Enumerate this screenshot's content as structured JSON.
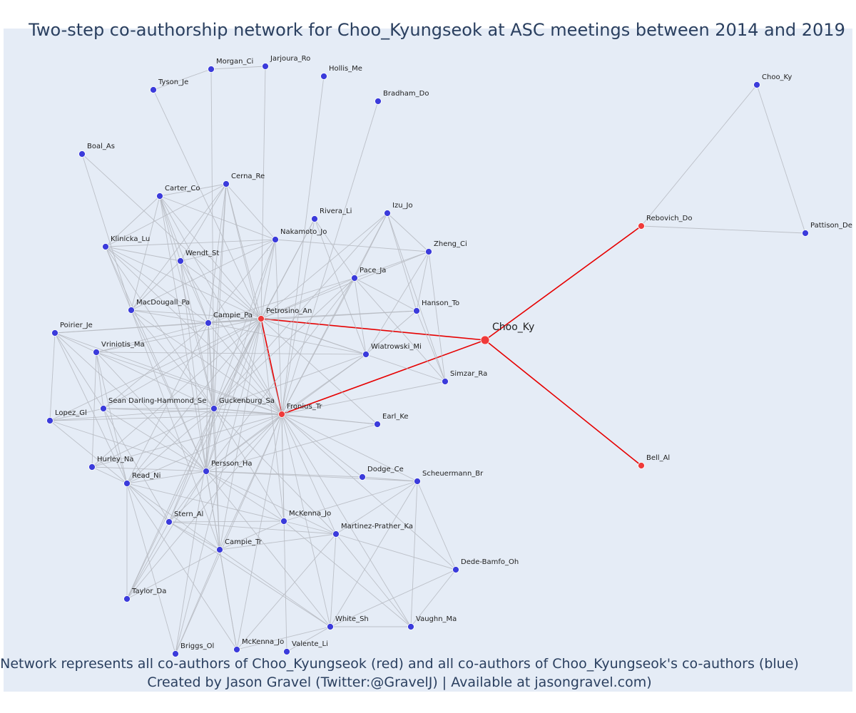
{
  "title": "Two-step co-authorship network for Choo_Kyungseok at ASC meetings between 2014 and 2019",
  "caption": {
    "line1": "Network represents all co-authors of Choo_Kyungseok (red) and all co-authors of Choo_Kyungseok's co-authors (blue)",
    "line2": "Created by Jason Gravel (Twitter:@GravelJ) | Available at jasongravel.com)"
  },
  "colors": {
    "background": "#e5ecf6",
    "text": "#2a3f5f",
    "coauthor": "#ef3a3a",
    "second_step": "#3b3bdb",
    "focal_edge": "#e60000",
    "edge": "#b5b8c0"
  },
  "nodes": [
    {
      "id": "Choo_Ky",
      "label": "Choo_Ky",
      "group": "focal"
    },
    {
      "id": "Petrosino_An",
      "label": "Petrosino_An",
      "group": "coauthor"
    },
    {
      "id": "Fronius_Tr",
      "label": "Fronius_Tr",
      "group": "coauthor"
    },
    {
      "id": "Rebovich_Do",
      "label": "Rebovich_Do",
      "group": "coauthor"
    },
    {
      "id": "Bell_Al",
      "label": "Bell_Al",
      "group": "coauthor"
    },
    {
      "id": "Choo_Ky2",
      "label": "Choo_Ky",
      "group": "second"
    },
    {
      "id": "Pattison_De",
      "label": "Pattison_De",
      "group": "second"
    },
    {
      "id": "Morgan_Ci",
      "label": "Morgan_Ci",
      "group": "second"
    },
    {
      "id": "Jarjoura_Ro",
      "label": "Jarjoura_Ro",
      "group": "second"
    },
    {
      "id": "Hollis_Me",
      "label": "Hollis_Me",
      "group": "second"
    },
    {
      "id": "Tyson_Je",
      "label": "Tyson_Je",
      "group": "second"
    },
    {
      "id": "Bradham_Do",
      "label": "Bradham_Do",
      "group": "second"
    },
    {
      "id": "Boal_As",
      "label": "Boal_As",
      "group": "second"
    },
    {
      "id": "Cerna_Re",
      "label": "Cerna_Re",
      "group": "second"
    },
    {
      "id": "Carter_Co",
      "label": "Carter_Co",
      "group": "second"
    },
    {
      "id": "Rivera_Li",
      "label": "Rivera_Li",
      "group": "second"
    },
    {
      "id": "Izu_Jo",
      "label": "Izu_Jo",
      "group": "second"
    },
    {
      "id": "Klinicka_Lu",
      "label": "Klinicka_Lu",
      "group": "second"
    },
    {
      "id": "Nakamoto_Jo",
      "label": "Nakamoto_Jo",
      "group": "second"
    },
    {
      "id": "Zheng_Ci",
      "label": "Zheng_Ci",
      "group": "second"
    },
    {
      "id": "Wendt_St",
      "label": "Wendt_St",
      "group": "second"
    },
    {
      "id": "Pace_Ja",
      "label": "Pace_Ja",
      "group": "second"
    },
    {
      "id": "MacDougall_Pa",
      "label": "MacDougall_Pa",
      "group": "second"
    },
    {
      "id": "Hanson_To",
      "label": "Hanson_To",
      "group": "second"
    },
    {
      "id": "Campie_Pa",
      "label": "Campie_Pa",
      "group": "second"
    },
    {
      "id": "Poirier_Je",
      "label": "Poirier_Je",
      "group": "second"
    },
    {
      "id": "Vriniotis_Ma",
      "label": "Vriniotis_Ma",
      "group": "second"
    },
    {
      "id": "Wiatrowski_Mi",
      "label": "Wiatrowski_Mi",
      "group": "second"
    },
    {
      "id": "Simzar_Ra",
      "label": "Simzar_Ra",
      "group": "second"
    },
    {
      "id": "Sean_Darling",
      "label": "Sean Darling-Hammond_Se",
      "group": "second"
    },
    {
      "id": "Guckenburg_Sa",
      "label": "Guckenburg_Sa",
      "group": "second"
    },
    {
      "id": "Lopez_Gl",
      "label": "Lopez_Gl",
      "group": "second"
    },
    {
      "id": "Earl_Ke",
      "label": "Earl_Ke",
      "group": "second"
    },
    {
      "id": "Hurley_Na",
      "label": "Hurley_Na",
      "group": "second"
    },
    {
      "id": "Persson_Ha",
      "label": "Persson_Ha",
      "group": "second"
    },
    {
      "id": "Dodge_Ce",
      "label": "Dodge_Ce",
      "group": "second"
    },
    {
      "id": "Read_Ni",
      "label": "Read_Ni",
      "group": "second"
    },
    {
      "id": "Scheuermann_Br",
      "label": "Scheuermann_Br",
      "group": "second"
    },
    {
      "id": "Stern_Al",
      "label": "Stern_Al",
      "group": "second"
    },
    {
      "id": "McKenna_Jo1",
      "label": "McKenna_Jo",
      "group": "second"
    },
    {
      "id": "Martinez_Prather",
      "label": "Martinez-Prather_Ka",
      "group": "second"
    },
    {
      "id": "Campie_Tr",
      "label": "Campie_Tr",
      "group": "second"
    },
    {
      "id": "Dede_Bamfo",
      "label": "Dede-Bamfo_Oh",
      "group": "second"
    },
    {
      "id": "Taylor_Da",
      "label": "Taylor_Da",
      "group": "second"
    },
    {
      "id": "White_Sh",
      "label": "White_Sh",
      "group": "second"
    },
    {
      "id": "Vaughn_Ma",
      "label": "Vaughn_Ma",
      "group": "second"
    },
    {
      "id": "Briggs_Ol",
      "label": "Briggs_Ol",
      "group": "second"
    },
    {
      "id": "McKenna_Jo2",
      "label": "McKenna_Jo",
      "group": "second"
    },
    {
      "id": "Valente_Li",
      "label": "Valente_Li",
      "group": "second"
    }
  ],
  "edges": [
    [
      "Choo_Ky",
      "Petrosino_An"
    ],
    [
      "Choo_Ky",
      "Fronius_Tr"
    ],
    [
      "Choo_Ky",
      "Rebovich_Do"
    ],
    [
      "Choo_Ky",
      "Bell_Al"
    ],
    [
      "Petrosino_An",
      "Fronius_Tr"
    ],
    [
      "Rebovich_Do",
      "Choo_Ky2"
    ],
    [
      "Rebovich_Do",
      "Pattison_De"
    ],
    [
      "Choo_Ky2",
      "Pattison_De"
    ],
    [
      "Petrosino_An",
      "Jarjoura_Ro"
    ],
    [
      "Petrosino_An",
      "Tyson_Je"
    ],
    [
      "Morgan_Ci",
      "Jarjoura_Ro"
    ],
    [
      "Tyson_Je",
      "Morgan_Ci"
    ],
    [
      "Morgan_Ci",
      "Guckenburg_Sa"
    ],
    [
      "Fronius_Tr",
      "Hollis_Me"
    ],
    [
      "Fronius_Tr",
      "Bradham_Do"
    ],
    [
      "Boal_As",
      "Petrosino_An"
    ],
    [
      "Boal_As",
      "MacDougall_Pa"
    ],
    [
      "Petrosino_An",
      "Cerna_Re"
    ],
    [
      "Petrosino_An",
      "Carter_Co"
    ],
    [
      "Petrosino_An",
      "Rivera_Li"
    ],
    [
      "Petrosino_An",
      "Izu_Jo"
    ],
    [
      "Petrosino_An",
      "Klinicka_Lu"
    ],
    [
      "Petrosino_An",
      "Nakamoto_Jo"
    ],
    [
      "Petrosino_An",
      "Zheng_Ci"
    ],
    [
      "Petrosino_An",
      "Wendt_St"
    ],
    [
      "Petrosino_An",
      "Pace_Ja"
    ],
    [
      "Petrosino_An",
      "MacDougall_Pa"
    ],
    [
      "Petrosino_An",
      "Hanson_To"
    ],
    [
      "Petrosino_An",
      "Campie_Pa"
    ],
    [
      "Petrosino_An",
      "Poirier_Je"
    ],
    [
      "Petrosino_An",
      "Vriniotis_Ma"
    ],
    [
      "Petrosino_An",
      "Wiatrowski_Mi"
    ],
    [
      "Petrosino_An",
      "Sean_Darling"
    ],
    [
      "Petrosino_An",
      "Guckenburg_Sa"
    ],
    [
      "Petrosino_An",
      "Lopez_Gl"
    ],
    [
      "Petrosino_An",
      "Earl_Ke"
    ],
    [
      "Petrosino_An",
      "Persson_Ha"
    ],
    [
      "Petrosino_An",
      "Read_Ni"
    ],
    [
      "Petrosino_An",
      "Stern_Al"
    ],
    [
      "Petrosino_An",
      "McKenna_Jo1"
    ],
    [
      "Petrosino_An",
      "Campie_Tr"
    ],
    [
      "Petrosino_An",
      "Briggs_Ol"
    ],
    [
      "Petrosino_An",
      "Taylor_Da"
    ],
    [
      "Petrosino_An",
      "Hurley_Na"
    ],
    [
      "Petrosino_An",
      "Simzar_Ra"
    ],
    [
      "Fronius_Tr",
      "Cerna_Re"
    ],
    [
      "Fronius_Tr",
      "Carter_Co"
    ],
    [
      "Fronius_Tr",
      "Rivera_Li"
    ],
    [
      "Fronius_Tr",
      "Izu_Jo"
    ],
    [
      "Fronius_Tr",
      "Klinicka_Lu"
    ],
    [
      "Fronius_Tr",
      "Nakamoto_Jo"
    ],
    [
      "Fronius_Tr",
      "Wendt_St"
    ],
    [
      "Fronius_Tr",
      "Pace_Ja"
    ],
    [
      "Fronius_Tr",
      "MacDougall_Pa"
    ],
    [
      "Fronius_Tr",
      "Campie_Pa"
    ],
    [
      "Fronius_Tr",
      "Vriniotis_Ma"
    ],
    [
      "Fronius_Tr",
      "Wiatrowski_Mi"
    ],
    [
      "Fronius_Tr",
      "Simzar_Ra"
    ],
    [
      "Fronius_Tr",
      "Sean_Darling"
    ],
    [
      "Fronius_Tr",
      "Guckenburg_Sa"
    ],
    [
      "Fronius_Tr",
      "Lopez_Gl"
    ],
    [
      "Fronius_Tr",
      "Earl_Ke"
    ],
    [
      "Fronius_Tr",
      "Hurley_Na"
    ],
    [
      "Fronius_Tr",
      "Persson_Ha"
    ],
    [
      "Fronius_Tr",
      "Dodge_Ce"
    ],
    [
      "Fronius_Tr",
      "Read_Ni"
    ],
    [
      "Fronius_Tr",
      "Scheuermann_Br"
    ],
    [
      "Fronius_Tr",
      "Stern_Al"
    ],
    [
      "Fronius_Tr",
      "McKenna_Jo1"
    ],
    [
      "Fronius_Tr",
      "Martinez_Prather"
    ],
    [
      "Fronius_Tr",
      "Campie_Tr"
    ],
    [
      "Fronius_Tr",
      "Dede_Bamfo"
    ],
    [
      "Fronius_Tr",
      "Taylor_Da"
    ],
    [
      "Fronius_Tr",
      "White_Sh"
    ],
    [
      "Fronius_Tr",
      "Vaughn_Ma"
    ],
    [
      "Fronius_Tr",
      "Briggs_Ol"
    ],
    [
      "Fronius_Tr",
      "McKenna_Jo2"
    ],
    [
      "Fronius_Tr",
      "Valente_Li"
    ],
    [
      "Fronius_Tr",
      "Poirier_Je"
    ],
    [
      "Carter_Co",
      "Cerna_Re"
    ],
    [
      "Carter_Co",
      "Klinicka_Lu"
    ],
    [
      "Carter_Co",
      "Wendt_St"
    ],
    [
      "Carter_Co",
      "MacDougall_Pa"
    ],
    [
      "Carter_Co",
      "Nakamoto_Jo"
    ],
    [
      "Carter_Co",
      "Campie_Pa"
    ],
    [
      "Carter_Co",
      "Guckenburg_Sa"
    ],
    [
      "Carter_Co",
      "Persson_Ha"
    ],
    [
      "Cerna_Re",
      "Klinicka_Lu"
    ],
    [
      "Cerna_Re",
      "Wendt_St"
    ],
    [
      "Cerna_Re",
      "Nakamoto_Jo"
    ],
    [
      "Cerna_Re",
      "MacDougall_Pa"
    ],
    [
      "Cerna_Re",
      "Campie_Pa"
    ],
    [
      "Cerna_Re",
      "Guckenburg_Sa"
    ],
    [
      "Cerna_Re",
      "Persson_Ha"
    ],
    [
      "Klinicka_Lu",
      "Wendt_St"
    ],
    [
      "Klinicka_Lu",
      "Nakamoto_Jo"
    ],
    [
      "Klinicka_Lu",
      "MacDougall_Pa"
    ],
    [
      "Klinicka_Lu",
      "Campie_Pa"
    ],
    [
      "Klinicka_Lu",
      "Guckenburg_Sa"
    ],
    [
      "Klinicka_Lu",
      "Persson_Ha"
    ],
    [
      "Wendt_St",
      "Nakamoto_Jo"
    ],
    [
      "Wendt_St",
      "MacDougall_Pa"
    ],
    [
      "Wendt_St",
      "Campie_Pa"
    ],
    [
      "Wendt_St",
      "Guckenburg_Sa"
    ],
    [
      "Wendt_St",
      "Persson_Ha"
    ],
    [
      "Nakamoto_Jo",
      "MacDougall_Pa"
    ],
    [
      "Nakamoto_Jo",
      "Campie_Pa"
    ],
    [
      "Nakamoto_Jo",
      "Guckenburg_Sa"
    ],
    [
      "Nakamoto_Jo",
      "Persson_Ha"
    ],
    [
      "Nakamoto_Jo",
      "Zheng_Ci"
    ],
    [
      "MacDougall_Pa",
      "Campie_Pa"
    ],
    [
      "MacDougall_Pa",
      "Guckenburg_Sa"
    ],
    [
      "MacDougall_Pa",
      "Persson_Ha"
    ],
    [
      "MacDougall_Pa",
      "Campie_Tr"
    ],
    [
      "Rivera_Li",
      "Guckenburg_Sa"
    ],
    [
      "Rivera_Li",
      "Wiatrowski_Mi"
    ],
    [
      "Rivera_Li",
      "Pace_Ja"
    ],
    [
      "Izu_Jo",
      "Zheng_Ci"
    ],
    [
      "Izu_Jo",
      "Pace_Ja"
    ],
    [
      "Izu_Jo",
      "Hanson_To"
    ],
    [
      "Izu_Jo",
      "Simzar_Ra"
    ],
    [
      "Izu_Jo",
      "Guckenburg_Sa"
    ],
    [
      "Zheng_Ci",
      "Pace_Ja"
    ],
    [
      "Zheng_Ci",
      "Hanson_To"
    ],
    [
      "Zheng_Ci",
      "Simzar_Ra"
    ],
    [
      "Zheng_Ci",
      "Wiatrowski_Mi"
    ],
    [
      "Pace_Ja",
      "Hanson_To"
    ],
    [
      "Pace_Ja",
      "Simzar_Ra"
    ],
    [
      "Pace_Ja",
      "Wiatrowski_Mi"
    ],
    [
      "Pace_Ja",
      "Guckenburg_Sa"
    ],
    [
      "Pace_Ja",
      "Campie_Pa"
    ],
    [
      "Pace_Ja",
      "Persson_Ha"
    ],
    [
      "Hanson_To",
      "Simzar_Ra"
    ],
    [
      "Hanson_To",
      "Campie_Pa"
    ],
    [
      "Hanson_To",
      "Wiatrowski_Mi"
    ],
    [
      "Campie_Pa",
      "Guckenburg_Sa"
    ],
    [
      "Campie_Pa",
      "Persson_Ha"
    ],
    [
      "Campie_Pa",
      "Poirier_Je"
    ],
    [
      "Campie_Pa",
      "Vriniotis_Ma"
    ],
    [
      "Campie_Pa",
      "Sean_Darling"
    ],
    [
      "Campie_Pa",
      "Read_Ni"
    ],
    [
      "Campie_Pa",
      "Campie_Tr"
    ],
    [
      "Campie_Pa",
      "Wiatrowski_Mi"
    ],
    [
      "Poirier_Je",
      "Vriniotis_Ma"
    ],
    [
      "Poirier_Je",
      "Lopez_Gl"
    ],
    [
      "Poirier_Je",
      "Sean_Darling"
    ],
    [
      "Poirier_Je",
      "Read_Ni"
    ],
    [
      "Poirier_Je",
      "Persson_Ha"
    ],
    [
      "Vriniotis_Ma",
      "Sean_Darling"
    ],
    [
      "Vriniotis_Ma",
      "Guckenburg_Sa"
    ],
    [
      "Vriniotis_Ma",
      "Persson_Ha"
    ],
    [
      "Vriniotis_Ma",
      "Read_Ni"
    ],
    [
      "Vriniotis_Ma",
      "Hurley_Na"
    ],
    [
      "Vriniotis_Ma",
      "Wiatrowski_Mi"
    ],
    [
      "Wiatrowski_Mi",
      "Guckenburg_Sa"
    ],
    [
      "Wiatrowski_Mi",
      "Persson_Ha"
    ],
    [
      "Sean_Darling",
      "Guckenburg_Sa"
    ],
    [
      "Sean_Darling",
      "Lopez_Gl"
    ],
    [
      "Sean_Darling",
      "Persson_Ha"
    ],
    [
      "Sean_Darling",
      "Read_Ni"
    ],
    [
      "Sean_Darling",
      "Stern_Al"
    ],
    [
      "Guckenburg_Sa",
      "Lopez_Gl"
    ],
    [
      "Guckenburg_Sa",
      "Persson_Ha"
    ],
    [
      "Guckenburg_Sa",
      "Read_Ni"
    ],
    [
      "Guckenburg_Sa",
      "Stern_Al"
    ],
    [
      "Guckenburg_Sa",
      "Campie_Tr"
    ],
    [
      "Guckenburg_Sa",
      "Hurley_Na"
    ],
    [
      "Guckenburg_Sa",
      "McKenna_Jo1"
    ],
    [
      "Guckenburg_Sa",
      "Taylor_Da"
    ],
    [
      "Guckenburg_Sa",
      "Briggs_Ol"
    ],
    [
      "Guckenburg_Sa",
      "Earl_Ke"
    ],
    [
      "Guckenburg_Sa",
      "Martinez_Prather"
    ],
    [
      "Lopez_Gl",
      "Read_Ni"
    ],
    [
      "Lopez_Gl",
      "Persson_Ha"
    ],
    [
      "Hurley_Na",
      "Read_Ni"
    ],
    [
      "Hurley_Na",
      "Persson_Ha"
    ],
    [
      "Persson_Ha",
      "Read_Ni"
    ],
    [
      "Persson_Ha",
      "Stern_Al"
    ],
    [
      "Persson_Ha",
      "McKenna_Jo1"
    ],
    [
      "Persson_Ha",
      "Martinez_Prather"
    ],
    [
      "Persson_Ha",
      "Campie_Tr"
    ],
    [
      "Persson_Ha",
      "Dodge_Ce"
    ],
    [
      "Persson_Ha",
      "Scheuermann_Br"
    ],
    [
      "Persson_Ha",
      "Taylor_Da"
    ],
    [
      "Persson_Ha",
      "White_Sh"
    ],
    [
      "Persson_Ha",
      "McKenna_Jo2"
    ],
    [
      "Persson_Ha",
      "Earl_Ke"
    ],
    [
      "Read_Ni",
      "Stern_Al"
    ],
    [
      "Read_Ni",
      "Campie_Tr"
    ],
    [
      "Read_Ni",
      "Taylor_Da"
    ],
    [
      "Read_Ni",
      "Briggs_Ol"
    ],
    [
      "Read_Ni",
      "McKenna_Jo1"
    ],
    [
      "Read_Ni",
      "McKenna_Jo2"
    ],
    [
      "Stern_Al",
      "McKenna_Jo1"
    ],
    [
      "Stern_Al",
      "Martinez_Prather"
    ],
    [
      "Stern_Al",
      "Campie_Tr"
    ],
    [
      "Stern_Al",
      "Taylor_Da"
    ],
    [
      "Stern_Al",
      "White_Sh"
    ],
    [
      "McKenna_Jo1",
      "Martinez_Prather"
    ],
    [
      "McKenna_Jo1",
      "Campie_Tr"
    ],
    [
      "McKenna_Jo1",
      "Scheuermann_Br"
    ],
    [
      "McKenna_Jo1",
      "Vaughn_Ma"
    ],
    [
      "Martinez_Prather",
      "Scheuermann_Br"
    ],
    [
      "Martinez_Prather",
      "Dede_Bamfo"
    ],
    [
      "Martinez_Prather",
      "White_Sh"
    ],
    [
      "Martinez_Prather",
      "Vaughn_Ma"
    ],
    [
      "Martinez_Prather",
      "McKenna_Jo2"
    ],
    [
      "Martinez_Prather",
      "Campie_Tr"
    ],
    [
      "Campie_Tr",
      "Taylor_Da"
    ],
    [
      "Campie_Tr",
      "Briggs_Ol"
    ],
    [
      "Campie_Tr",
      "McKenna_Jo2"
    ],
    [
      "Campie_Tr",
      "White_Sh"
    ],
    [
      "Scheuermann_Br",
      "Dede_Bamfo"
    ],
    [
      "Scheuermann_Br",
      "White_Sh"
    ],
    [
      "Scheuermann_Br",
      "Vaughn_Ma"
    ],
    [
      "Scheuermann_Br",
      "Dodge_Ce"
    ],
    [
      "Dede_Bamfo",
      "White_Sh"
    ],
    [
      "Dede_Bamfo",
      "Vaughn_Ma"
    ],
    [
      "White_Sh",
      "Vaughn_Ma"
    ],
    [
      "White_Sh",
      "McKenna_Jo2"
    ],
    [
      "White_Sh",
      "Valente_Li"
    ]
  ]
}
